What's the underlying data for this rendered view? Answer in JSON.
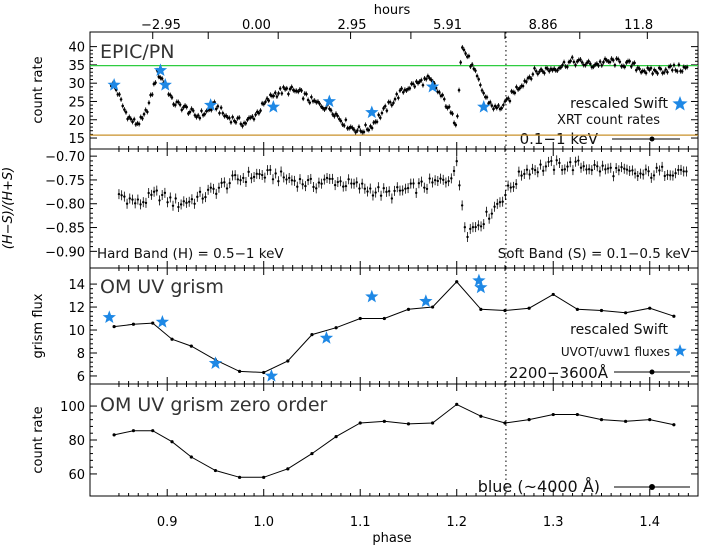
{
  "colors": {
    "green": "#2ecc40",
    "orange": "#c8912a",
    "star": "#1e88e5",
    "line": "#000000"
  },
  "labels": {
    "top_axis": "hours",
    "bottom_axis": "phase",
    "p1_ylabel": "count rate",
    "p1_title": "EPIC/PN",
    "p1_swift1": "rescaled Swift",
    "p1_swift2": "XRT count rates",
    "p1_band": "0.1−1 keV",
    "p2_ylabel": "(H−S)/(H+S)",
    "p2_hard": "Hard Band (H) = 0.5−1 keV",
    "p2_soft": "Soft Band (S) = 0.1−0.5 keV",
    "p3_ylabel": "grism flux",
    "p3_title": "OM UV grism",
    "p3_swift1": "rescaled Swift",
    "p3_swift2": "UVOT/uvw1 fluxes",
    "p3_band": "2200−3600Å",
    "p4_ylabel": "count rate",
    "p4_title": "OM UV grism zero order",
    "p4_band": "blue (~4000 Å)"
  },
  "chart_data": [
    {
      "type": "line",
      "title": "EPIC/PN",
      "xlabel": "phase",
      "ylabel": "count rate",
      "x_range": [
        0.82,
        1.45
      ],
      "xticks": [
        0.9,
        1.0,
        1.1,
        1.2,
        1.3,
        1.4
      ],
      "xtick_labels": [
        "0.9",
        "1.0",
        "1.1",
        "1.2",
        "1.3",
        "1.4"
      ],
      "top_axis": {
        "label": "hours",
        "ticks": [
          "−2.95",
          "0.00",
          "2.95",
          "5.91",
          "8.86",
          "11.8"
        ],
        "phase_positions": [
          0.885,
          0.9425,
          1.015,
          1.09,
          1.1525,
          1.25,
          1.3275,
          1.3975
        ]
      },
      "ylim": [
        12,
        44
      ],
      "yticks": [
        15,
        20,
        25,
        30,
        35,
        40
      ],
      "hlines": [
        {
          "y": 34.8,
          "color": "green"
        },
        {
          "y": 15.8,
          "color": "orange"
        }
      ],
      "vline_phase": 1.251,
      "series": [
        {
          "name": "0.1−1 keV",
          "x": [
            0.842,
            0.848,
            0.855,
            0.862,
            0.868,
            0.875,
            0.882,
            0.89,
            0.895,
            0.9,
            0.905,
            0.912,
            0.92,
            0.93,
            0.94,
            0.95,
            0.96,
            0.97,
            0.98,
            0.99,
            1.0,
            1.01,
            1.02,
            1.03,
            1.04,
            1.05,
            1.06,
            1.07,
            1.08,
            1.09,
            1.1,
            1.11,
            1.12,
            1.13,
            1.14,
            1.15,
            1.16,
            1.17,
            1.175,
            1.18,
            1.19,
            1.195,
            1.2,
            1.205,
            1.21,
            1.22,
            1.23,
            1.24,
            1.25,
            1.26,
            1.28,
            1.3,
            1.32,
            1.34,
            1.36,
            1.38,
            1.4,
            1.42,
            1.44
          ],
          "y": [
            30,
            28,
            23,
            20,
            19,
            20,
            25,
            33,
            31,
            29,
            25,
            24,
            23,
            21,
            22,
            24,
            21,
            20,
            19,
            21,
            24,
            27,
            28,
            28,
            27,
            25,
            24,
            23,
            20,
            18,
            17,
            18,
            21,
            24,
            27,
            29,
            30,
            31,
            30,
            28,
            24,
            21,
            19,
            40,
            38,
            32,
            26,
            23,
            24,
            28,
            33,
            34,
            36,
            35,
            36,
            35,
            33,
            34,
            34
          ]
        }
      ],
      "markers": {
        "name": "rescaled Swift XRT count rates",
        "x": [
          0.845,
          0.893,
          0.898,
          0.945,
          1.01,
          1.068,
          1.112,
          1.175,
          1.228
        ],
        "y": [
          29.5,
          33.5,
          29.5,
          24,
          23.5,
          25,
          22,
          29,
          23.5
        ]
      }
    },
    {
      "type": "line",
      "xlabel": "phase",
      "ylabel": "(H−S)/(H+S)",
      "ylim": [
        -0.935,
        -0.685
      ],
      "yticks": [
        -0.9,
        -0.85,
        -0.8,
        -0.75,
        -0.7
      ],
      "ytick_labels": [
        "−0.90",
        "−0.85",
        "−0.80",
        "−0.75",
        "−0.70"
      ],
      "series": [
        {
          "name": "hardness ratio",
          "x": [
            0.85,
            0.87,
            0.89,
            0.91,
            0.93,
            0.95,
            0.97,
            0.99,
            1.01,
            1.03,
            1.05,
            1.07,
            1.09,
            1.11,
            1.13,
            1.15,
            1.17,
            1.19,
            1.2,
            1.21,
            1.23,
            1.25,
            1.27,
            1.3,
            1.33,
            1.36,
            1.39,
            1.42,
            1.44
          ],
          "y": [
            -0.78,
            -0.8,
            -0.78,
            -0.8,
            -0.79,
            -0.77,
            -0.75,
            -0.74,
            -0.74,
            -0.75,
            -0.76,
            -0.75,
            -0.76,
            -0.77,
            -0.78,
            -0.77,
            -0.76,
            -0.75,
            -0.72,
            -0.86,
            -0.83,
            -0.78,
            -0.73,
            -0.72,
            -0.72,
            -0.73,
            -0.74,
            -0.73,
            -0.73
          ]
        }
      ]
    },
    {
      "type": "line",
      "title": "OM UV grism",
      "xlabel": "phase",
      "ylabel": "grism flux",
      "ylim": [
        5.3,
        15.4
      ],
      "yticks": [
        6,
        8,
        10,
        12,
        14
      ],
      "series": [
        {
          "name": "2200−3600Å",
          "x": [
            0.845,
            0.865,
            0.885,
            0.905,
            0.925,
            0.95,
            0.975,
            1.0,
            1.025,
            1.05,
            1.075,
            1.1,
            1.125,
            1.15,
            1.175,
            1.2,
            1.225,
            1.25,
            1.275,
            1.3,
            1.325,
            1.35,
            1.375,
            1.4,
            1.425
          ],
          "y": [
            10.3,
            10.5,
            10.6,
            9.2,
            8.6,
            7.4,
            6.4,
            6.3,
            7.3,
            9.6,
            10.2,
            11.0,
            11.0,
            11.8,
            12.0,
            14.2,
            11.8,
            11.7,
            11.9,
            13.1,
            11.8,
            11.7,
            11.5,
            11.9,
            11.2
          ]
        }
      ],
      "markers": {
        "name": "rescaled Swift UVOT/uvw1 fluxes",
        "x": [
          0.84,
          0.895,
          0.95,
          1.008,
          1.065,
          1.112,
          1.168,
          1.223,
          1.225
        ],
        "y": [
          11.1,
          10.7,
          7.1,
          6.0,
          9.3,
          12.9,
          12.5,
          14.3,
          13.7
        ]
      }
    },
    {
      "type": "line",
      "title": "OM UV grism zero order",
      "xlabel": "phase",
      "ylabel": "count rate",
      "ylim": [
        47,
        113
      ],
      "yticks": [
        60,
        80,
        100
      ],
      "series": [
        {
          "name": "blue (~4000 Å)",
          "x": [
            0.845,
            0.865,
            0.885,
            0.905,
            0.925,
            0.95,
            0.975,
            1.0,
            1.025,
            1.05,
            1.075,
            1.1,
            1.125,
            1.15,
            1.175,
            1.2,
            1.225,
            1.25,
            1.275,
            1.3,
            1.325,
            1.35,
            1.375,
            1.4,
            1.425
          ],
          "y": [
            83,
            85.5,
            85.5,
            79,
            70,
            62,
            58,
            58,
            63,
            72,
            82,
            90,
            91,
            89.5,
            90,
            101,
            94,
            90,
            92,
            95,
            95,
            92,
            91,
            92,
            89
          ]
        }
      ]
    }
  ]
}
